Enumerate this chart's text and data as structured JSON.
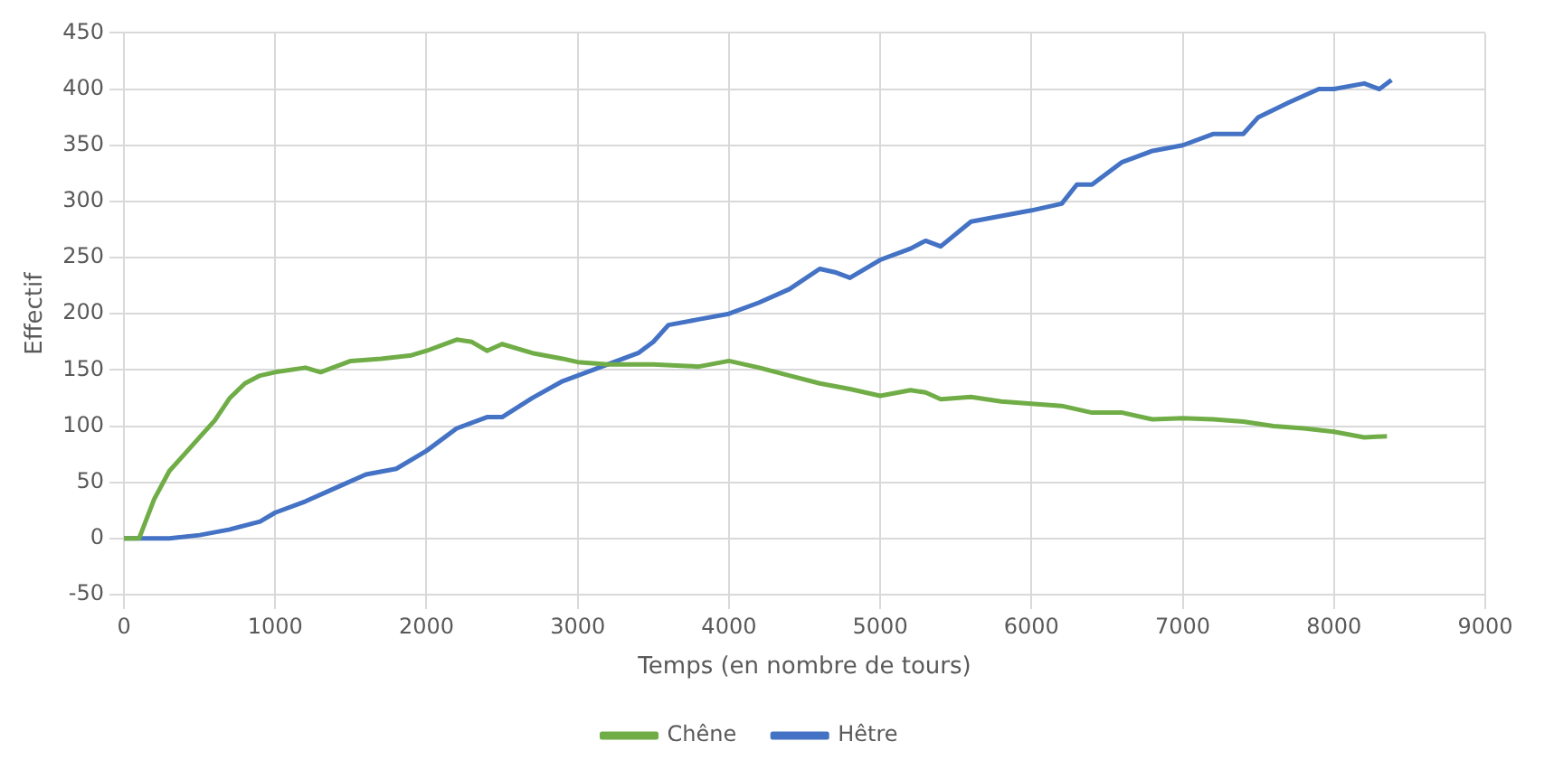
{
  "chart_data": {
    "type": "line",
    "xlabel": "Temps (en nombre de tours)",
    "ylabel": "Effectif",
    "xlim": [
      0,
      9000
    ],
    "xticks": [
      0,
      1000,
      2000,
      3000,
      4000,
      5000,
      6000,
      7000,
      8000,
      9000
    ],
    "ylim": [
      -50,
      450
    ],
    "yticks": [
      -50,
      0,
      50,
      100,
      150,
      200,
      250,
      300,
      350,
      400,
      450
    ],
    "grid": true,
    "legend": "bottom",
    "marker": "none",
    "line_style": "solid",
    "series": [
      {
        "name": "Chêne",
        "color": "#70ad47",
        "x": [
          0,
          100,
          200,
          300,
          400,
          500,
          600,
          700,
          800,
          900,
          1000,
          1200,
          1300,
          1500,
          1700,
          1900,
          2000,
          2200,
          2300,
          2400,
          2500,
          2700,
          2900,
          3000,
          3200,
          3500,
          3800,
          4000,
          4200,
          4400,
          4600,
          4800,
          5000,
          5200,
          5300,
          5400,
          5600,
          5800,
          6000,
          6200,
          6400,
          6600,
          6800,
          7000,
          7200,
          7400,
          7600,
          7800,
          8000,
          8200,
          8350
        ],
        "values": [
          0,
          0,
          35,
          60,
          75,
          90,
          105,
          125,
          138,
          145,
          148,
          152,
          148,
          158,
          160,
          163,
          167,
          177,
          175,
          167,
          173,
          165,
          160,
          157,
          155,
          155,
          153,
          158,
          152,
          145,
          138,
          133,
          127,
          132,
          130,
          124,
          126,
          122,
          120,
          118,
          112,
          112,
          106,
          107,
          106,
          104,
          100,
          98,
          95,
          90,
          91
        ]
      },
      {
        "name": "Hêtre",
        "color": "#4472c4",
        "x": [
          0,
          300,
          500,
          700,
          900,
          1000,
          1200,
          1400,
          1600,
          1800,
          2000,
          2200,
          2400,
          2500,
          2700,
          2900,
          3000,
          3200,
          3400,
          3500,
          3600,
          3800,
          4000,
          4200,
          4400,
          4600,
          4700,
          4800,
          5000,
          5200,
          5300,
          5400,
          5600,
          5800,
          6000,
          6200,
          6300,
          6400,
          6600,
          6800,
          7000,
          7200,
          7400,
          7500,
          7700,
          7900,
          8000,
          8200,
          8300,
          8380
        ],
        "values": [
          0,
          0,
          3,
          8,
          15,
          23,
          33,
          45,
          57,
          62,
          78,
          98,
          108,
          108,
          125,
          140,
          145,
          155,
          165,
          175,
          190,
          195,
          200,
          210,
          222,
          240,
          237,
          232,
          248,
          258,
          265,
          260,
          282,
          287,
          292,
          298,
          315,
          315,
          335,
          345,
          350,
          360,
          360,
          375,
          388,
          400,
          400,
          405,
          400,
          408
        ]
      }
    ]
  }
}
